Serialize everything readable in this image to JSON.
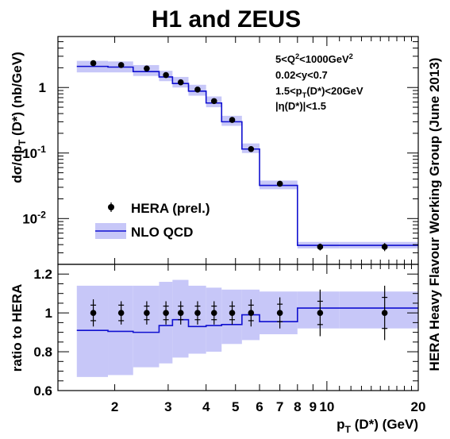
{
  "chart_data": [
    {
      "type": "line",
      "title": "H1 and ZEUS",
      "xlabel": "p_T (D*) (GeV)",
      "ylabel": "dσ/dp_T (D*) (nb/GeV)",
      "xscale": "log",
      "yscale": "log",
      "xlim": [
        1.3,
        20
      ],
      "ylim": [
        0.002,
        6
      ],
      "x_ticks": [
        "2",
        "3",
        "4",
        "5",
        "6",
        "7",
        "8",
        "9",
        "10",
        "20"
      ],
      "y_ticks": [
        "10^-2",
        "10^-1",
        "1"
      ],
      "legend_position": "bottom-left",
      "annotations": [
        "5<Q^2<1000GeV^2",
        "0.02<y<0.7",
        "1.5<p_T(D*)<20GeV",
        "|η(D*)|<1.5"
      ],
      "side_label": "HERA Heavy Flavour Working Group     (June 2013)",
      "bin_edges": [
        1.5,
        1.9,
        2.3,
        2.8,
        3.1,
        3.5,
        4.0,
        4.5,
        5.25,
        6.0,
        8.0,
        11.0,
        20.0
      ],
      "series": [
        {
          "name": "HERA (prel.)",
          "style": "points",
          "x": [
            1.7,
            2.1,
            2.55,
            2.95,
            3.3,
            3.75,
            4.25,
            4.875,
            5.625,
            7.0,
            9.5,
            15.5
          ],
          "y": [
            2.35,
            2.2,
            1.95,
            1.55,
            1.2,
            0.93,
            0.62,
            0.32,
            0.115,
            0.034,
            0.0037,
            0.0037
          ],
          "y_error_rel": [
            0.07,
            0.06,
            0.06,
            0.06,
            0.06,
            0.06,
            0.06,
            0.06,
            0.07,
            0.08,
            0.12,
            0.14
          ]
        },
        {
          "name": "NLO QCD",
          "style": "step_band",
          "values": [
            2.1,
            2.05,
            1.75,
            1.45,
            1.15,
            0.88,
            0.58,
            0.3,
            0.115,
            0.032,
            0.0039,
            0.0039
          ],
          "band_low": [
            1.7,
            1.7,
            1.5,
            1.25,
            1.0,
            0.75,
            0.5,
            0.26,
            0.1,
            0.028,
            0.0035,
            0.0035
          ],
          "band_high": [
            2.55,
            2.5,
            2.2,
            1.8,
            1.45,
            1.1,
            0.73,
            0.37,
            0.14,
            0.038,
            0.0044,
            0.0044
          ]
        }
      ]
    },
    {
      "type": "line",
      "xlabel": "p_T (D*) (GeV)",
      "ylabel": "ratio to HERA",
      "xscale": "log",
      "xlim": [
        1.3,
        20
      ],
      "ylim": [
        0.6,
        1.25
      ],
      "y_ticks": [
        "0.6",
        "0.8",
        "1",
        "1.2"
      ],
      "bin_edges": [
        1.5,
        1.9,
        2.3,
        2.8,
        3.1,
        3.5,
        4.0,
        4.5,
        5.25,
        6.0,
        8.0,
        11.0,
        20.0
      ],
      "series": [
        {
          "name": "HERA (prel.)",
          "style": "points",
          "x": [
            1.7,
            2.1,
            2.55,
            2.95,
            3.3,
            3.75,
            4.25,
            4.875,
            5.625,
            7.0,
            9.5,
            15.5
          ],
          "y": [
            1,
            1,
            1,
            1,
            1,
            1,
            1,
            1,
            1,
            1,
            1,
            1
          ],
          "stat_error": [
            0.04,
            0.04,
            0.035,
            0.035,
            0.035,
            0.035,
            0.035,
            0.035,
            0.04,
            0.045,
            0.06,
            0.08
          ],
          "total_error": [
            0.07,
            0.06,
            0.06,
            0.06,
            0.06,
            0.06,
            0.06,
            0.06,
            0.07,
            0.08,
            0.12,
            0.14
          ]
        },
        {
          "name": "NLO QCD",
          "style": "step_band",
          "values": [
            0.91,
            0.905,
            0.9,
            0.935,
            0.965,
            0.93,
            0.935,
            0.94,
            0.99,
            0.955,
            1.025,
            1.025
          ],
          "band_low": [
            0.67,
            0.68,
            0.72,
            0.74,
            0.77,
            0.79,
            0.8,
            0.84,
            0.86,
            0.89,
            0.92,
            0.92
          ],
          "band_high": [
            1.14,
            1.14,
            1.14,
            1.16,
            1.17,
            1.14,
            1.13,
            1.12,
            1.12,
            1.11,
            1.11,
            1.11
          ]
        }
      ]
    }
  ]
}
